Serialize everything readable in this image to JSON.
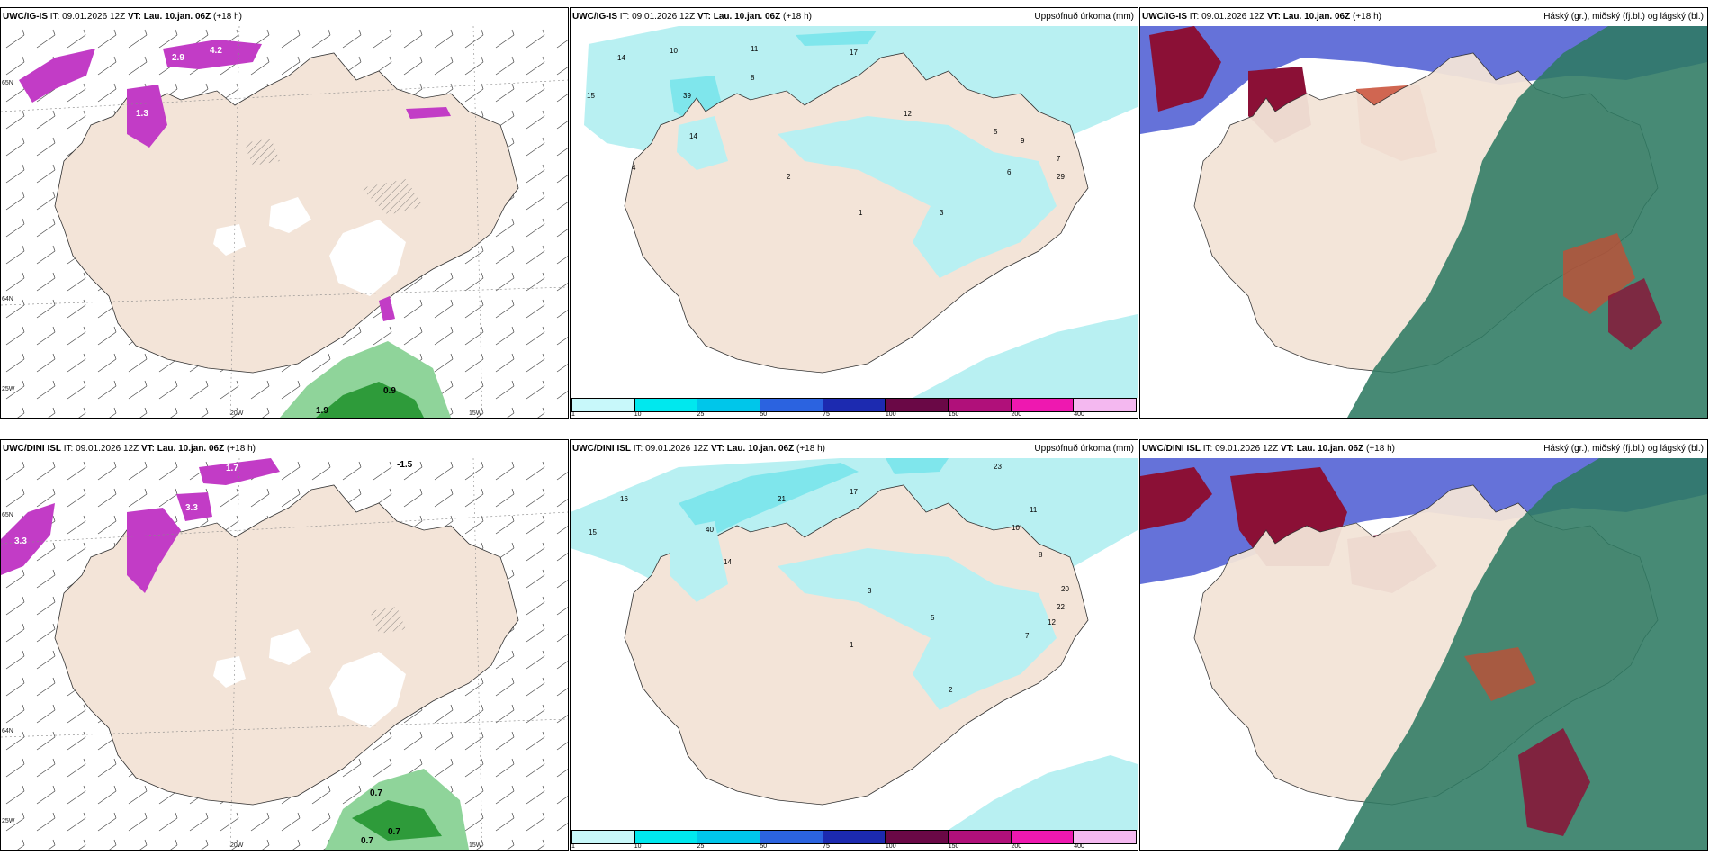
{
  "colors": {
    "land": "#f3e4d8",
    "precip_light": "#b8f0f2",
    "precip_mid": "#7fe6ec",
    "cloud_high": "#2e7a62",
    "cloud_mid": "#8b1036",
    "cloud_low": "#3e4fd0",
    "snow_purple": "#c23cc6",
    "green_precip": "#2e9b3a"
  },
  "panels": {
    "p1": {
      "model": "UWC/IG-IS",
      "it_label": "IT: 09.01.2026 12Z",
      "vt_label": "VT: Lau. 10.jan. 06Z",
      "lead": "(+18 h)",
      "right_title": ""
    },
    "p2": {
      "model": "UWC/IG-IS",
      "it_label": "IT: 09.01.2026 12Z",
      "vt_label": "VT: Lau. 10.jan. 06Z",
      "lead": "(+18 h)",
      "right_title": "Uppsöfnuð úrkoma (mm)"
    },
    "p3": {
      "model": "UWC/IG-IS",
      "it_label": "IT: 09.01.2026 12Z",
      "vt_label": "VT: Lau. 10.jan. 06Z",
      "lead": "(+18 h)",
      "right_title": "Háský (gr.), miðský (fj.bl.) og lágský (bl.)"
    },
    "p4": {
      "model": "UWC/DINI ISL",
      "it_label": "IT: 09.01.2026 12Z",
      "vt_label": "VT: Lau. 10.jan. 06Z",
      "lead": "(+18 h)",
      "right_title": ""
    },
    "p5": {
      "model": "UWC/DINI ISL",
      "it_label": "IT: 09.01.2026 12Z",
      "vt_label": "VT: Lau. 10.jan. 06Z",
      "lead": "(+18 h)",
      "right_title": "Uppsöfnuð úrkoma (mm)"
    },
    "p6": {
      "model": "UWC/DINI ISL",
      "it_label": "IT: 09.01.2026 12Z",
      "vt_label": "VT: Lau. 10.jan. 06Z",
      "lead": "(+18 h)",
      "right_title": "Háský (gr.), miðský (fj.bl.) og lágský (bl.)"
    }
  },
  "legend": {
    "labels": [
      "1",
      "10",
      "25",
      "50",
      "75",
      "100",
      "150",
      "200",
      "400"
    ],
    "colors": [
      "#c8f8fa",
      "#00e8ee",
      "#00c6ea",
      "#2b63e0",
      "#1c2ab0",
      "#6a0846",
      "#b0107a",
      "#ee18b0",
      "#f4b8f0"
    ]
  },
  "coords": {
    "lon_20w": "20W",
    "lon_15w": "15W",
    "lat_65n": "65N",
    "lat_64n": "64N",
    "lat_25w": "25W"
  },
  "values": {
    "p1": [
      "2.9",
      "4.2",
      "1.3",
      "0.9",
      "1.9"
    ],
    "p4": [
      "1.7",
      "3.3",
      "3.3",
      "0.7",
      "0.7",
      "0.7",
      "-1.5"
    ],
    "p2": [
      "14",
      "15",
      "10",
      "17",
      "11",
      "39",
      "12",
      "14",
      "8",
      "29",
      "9",
      "7",
      "6",
      "5",
      "4",
      "3",
      "2",
      "1"
    ],
    "p5": [
      "16",
      "15",
      "21",
      "17",
      "40",
      "14",
      "23",
      "20",
      "22",
      "12",
      "11",
      "10",
      "8",
      "7",
      "5",
      "3",
      "2",
      "1"
    ]
  }
}
